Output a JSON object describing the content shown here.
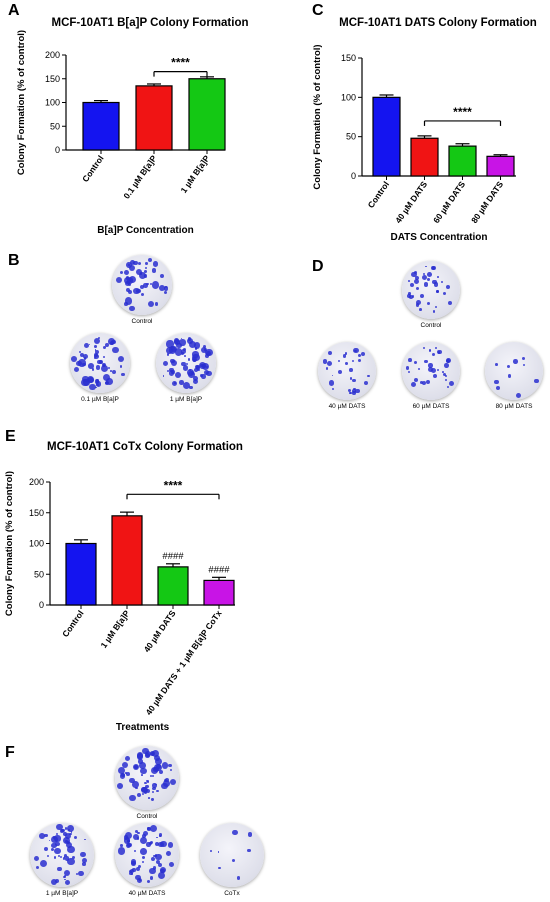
{
  "panels": {
    "A": "A",
    "B": "B",
    "C": "C",
    "D": "D",
    "E": "E",
    "F": "F"
  },
  "chart_data": [
    {
      "id": "A",
      "type": "bar",
      "title": "MCF-10AT1 B[a]P Colony Formation",
      "xlabel": "B[a]P Concentration",
      "ylabel": "Colony Formation (% of control)",
      "ylim": [
        0,
        200
      ],
      "yticks": [
        "0",
        "50",
        "100",
        "150",
        "200"
      ],
      "categories": [
        "Control",
        "0.1 µM B[a]P",
        "1 µM B[a]P"
      ],
      "values": [
        100,
        135,
        150
      ],
      "errors": [
        4,
        4,
        4
      ],
      "colors": [
        "#1414f0",
        "#f01414",
        "#14c814"
      ],
      "annotations": [
        {
          "text": "****",
          "from": 1,
          "to": 2,
          "y": 165
        }
      ]
    },
    {
      "id": "C",
      "type": "bar",
      "title": "MCF-10AT1 DATS Colony Formation",
      "xlabel": "DATS Concentration",
      "ylabel": "Colony Formation (% of control)",
      "ylim": [
        0,
        150
      ],
      "yticks": [
        "0",
        "50",
        "100",
        "150"
      ],
      "categories": [
        "Control",
        "40 µM DATS",
        "60 µM DATS",
        "80 µM DATS"
      ],
      "values": [
        100,
        48,
        38,
        25
      ],
      "errors": [
        3,
        3,
        3,
        2
      ],
      "colors": [
        "#1414f0",
        "#f01414",
        "#14c814",
        "#c814e6"
      ],
      "annotations": [
        {
          "text": "****",
          "from": 1,
          "to": 3,
          "y": 70
        }
      ]
    },
    {
      "id": "E",
      "type": "bar",
      "title": "MCF-10AT1 CoTx Colony Formation",
      "xlabel": "Treatments",
      "ylabel": "Colony Formation (% of control)",
      "ylim": [
        0,
        200
      ],
      "yticks": [
        "0",
        "50",
        "100",
        "150",
        "200"
      ],
      "categories": [
        "Control",
        "1 µM B[a]P",
        "40 µM DATS",
        "40 µM DATS + 1 µM B[a]P CoTx"
      ],
      "values": [
        100,
        145,
        62,
        40
      ],
      "errors": [
        6,
        6,
        5,
        5
      ],
      "colors": [
        "#1414f0",
        "#f01414",
        "#14c814",
        "#c814e6"
      ],
      "marks": [
        "",
        "",
        "####",
        "####"
      ],
      "annotations": [
        {
          "text": "****",
          "from": 1,
          "to": 3,
          "y": 180
        }
      ]
    }
  ],
  "plates": {
    "B": [
      "Control",
      "0.1 µM B[a]P",
      "1 µM B[a]P"
    ],
    "D": [
      "Control",
      "40 µM DATS",
      "60 µM DATS",
      "80 µM DATS"
    ],
    "F": [
      "Control",
      "1 µM B[a]P",
      "40 µM DATS",
      "CoTx"
    ]
  }
}
